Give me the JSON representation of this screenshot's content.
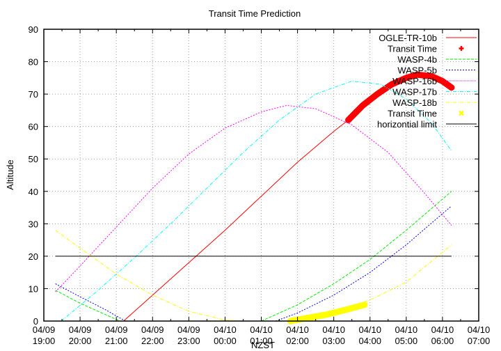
{
  "chart_data": {
    "type": "line",
    "title": "Transit Time Prediction",
    "xlabel": "NZST",
    "ylabel": "Altitude",
    "ylim": [
      0,
      90
    ],
    "yticks": [
      0,
      10,
      20,
      30,
      40,
      50,
      60,
      70,
      80,
      90
    ],
    "xlim_hours_from_start": [
      0,
      12
    ],
    "xticks": [
      {
        "date": "04/09",
        "time": "19:00"
      },
      {
        "date": "04/09",
        "time": "20:00"
      },
      {
        "date": "04/09",
        "time": "21:00"
      },
      {
        "date": "04/09",
        "time": "22:00"
      },
      {
        "date": "04/09",
        "time": "23:00"
      },
      {
        "date": "04/10",
        "time": "00:00"
      },
      {
        "date": "04/10",
        "time": "01:00"
      },
      {
        "date": "04/10",
        "time": "02:00"
      },
      {
        "date": "04/10",
        "time": "03:00"
      },
      {
        "date": "04/10",
        "time": "04:00"
      },
      {
        "date": "04/10",
        "time": "05:00"
      },
      {
        "date": "04/10",
        "time": "06:00"
      },
      {
        "date": "04/10",
        "time": "07:00"
      }
    ],
    "grid": true,
    "legend_position": "top-right",
    "series": [
      {
        "name": "OGLE-TR-10b",
        "color": "#ff0000",
        "style": "solid",
        "points": [
          [
            2.2,
            0
          ],
          [
            3,
            8
          ],
          [
            4,
            18
          ],
          [
            5,
            28
          ],
          [
            6,
            38.5
          ],
          [
            7,
            49
          ],
          [
            8,
            58.5
          ],
          [
            8.4,
            62
          ],
          [
            9,
            68
          ],
          [
            9.5,
            72
          ],
          [
            10,
            75
          ],
          [
            10.3,
            76
          ],
          [
            10.7,
            75.5
          ],
          [
            11.25,
            72
          ]
        ]
      },
      {
        "name": "Transit Time",
        "color": "#ff0000",
        "style": "thick",
        "points": [
          [
            8.4,
            62
          ],
          [
            8.8,
            66.5
          ],
          [
            9.2,
            70
          ],
          [
            9.6,
            73
          ],
          [
            10,
            75
          ],
          [
            10.3,
            76
          ],
          [
            10.7,
            75.5
          ],
          [
            11.0,
            74
          ],
          [
            11.25,
            72
          ]
        ]
      },
      {
        "name": "WASP-4b",
        "color": "#00ee00",
        "style": "dashed",
        "points": [
          [
            0.32,
            9.5
          ],
          [
            1,
            5.5
          ],
          [
            1.6,
            2.5
          ],
          [
            2.1,
            0
          ],
          [
            6.0,
            0
          ],
          [
            7,
            5
          ],
          [
            8,
            11.5
          ],
          [
            9,
            19
          ],
          [
            10,
            28
          ],
          [
            11.25,
            40
          ]
        ]
      },
      {
        "name": "WASP-5b",
        "color": "#0000ff",
        "style": "dotted",
        "points": [
          [
            0.32,
            11.5
          ],
          [
            1,
            7.5
          ],
          [
            1.7,
            3.5
          ],
          [
            2.25,
            0
          ],
          [
            6.4,
            0
          ],
          [
            7,
            2.5
          ],
          [
            8,
            8
          ],
          [
            9,
            15
          ],
          [
            10,
            23.5
          ],
          [
            11.25,
            35.5
          ]
        ]
      },
      {
        "name": "WASP-16b",
        "color": "#ff00ff",
        "style": "dotted",
        "points": [
          [
            0.32,
            9
          ],
          [
            1,
            17
          ],
          [
            2,
            29
          ],
          [
            3,
            41
          ],
          [
            4,
            51.5
          ],
          [
            5,
            59.5
          ],
          [
            6,
            64.5
          ],
          [
            6.7,
            66.5
          ],
          [
            7.5,
            65.5
          ],
          [
            8.5,
            60.5
          ],
          [
            9.5,
            52
          ],
          [
            10.5,
            39.5
          ],
          [
            11.25,
            29.5
          ]
        ]
      },
      {
        "name": "WASP-17b",
        "color": "#00ffff",
        "style": "dashdot",
        "points": [
          [
            0.48,
            0
          ],
          [
            1.5,
            9.5
          ],
          [
            2.5,
            19.5
          ],
          [
            3.5,
            30
          ],
          [
            4.5,
            41
          ],
          [
            5.5,
            52
          ],
          [
            6.5,
            62
          ],
          [
            7.5,
            70
          ],
          [
            8.5,
            74
          ],
          [
            9.3,
            73
          ],
          [
            10,
            68.5
          ],
          [
            10.7,
            61
          ],
          [
            11.25,
            52.5
          ]
        ]
      },
      {
        "name": "WASP-18b",
        "color": "#ffff00",
        "style": "dashdot",
        "points": [
          [
            0.32,
            28
          ],
          [
            1,
            22.5
          ],
          [
            2,
            14.5
          ],
          [
            3,
            8
          ],
          [
            4,
            3
          ],
          [
            5,
            0.3
          ],
          [
            5.5,
            0
          ],
          [
            6.8,
            0
          ],
          [
            8,
            3
          ],
          [
            9,
            6.5
          ],
          [
            10,
            12
          ],
          [
            11.25,
            23.5
          ]
        ]
      },
      {
        "name": "Transit Time",
        "color": "#ffff00",
        "style": "thick",
        "points": [
          [
            6.8,
            0
          ],
          [
            7.3,
            1
          ],
          [
            7.8,
            2
          ],
          [
            8.3,
            3.4
          ],
          [
            8.85,
            5
          ]
        ]
      },
      {
        "name": "horizontial limit",
        "color": "#000000",
        "style": "solid",
        "points": [
          [
            0.32,
            20
          ],
          [
            11.25,
            20
          ]
        ]
      }
    ]
  },
  "legend": [
    {
      "label": "OGLE-TR-10b",
      "color": "#ff0000",
      "kind": "line",
      "dash": ""
    },
    {
      "label": "Transit Time",
      "color": "#ff0000",
      "kind": "plus"
    },
    {
      "label": "WASP-4b",
      "color": "#00ee00",
      "kind": "line",
      "dash": "4,2"
    },
    {
      "label": "WASP-5b",
      "color": "#0000ff",
      "kind": "line",
      "dash": "2,2"
    },
    {
      "label": "WASP-16b",
      "color": "#ff00ff",
      "kind": "line",
      "dash": "1,1"
    },
    {
      "label": "WASP-17b",
      "color": "#00ffff",
      "kind": "line",
      "dash": "5,2,1,2"
    },
    {
      "label": "WASP-18b",
      "color": "#ffff00",
      "kind": "line",
      "dash": "5,2,1,2"
    },
    {
      "label": "Transit Time",
      "color": "#ffff00",
      "kind": "cross"
    },
    {
      "label": "horizontial limit",
      "color": "#000000",
      "kind": "line",
      "dash": ""
    }
  ]
}
